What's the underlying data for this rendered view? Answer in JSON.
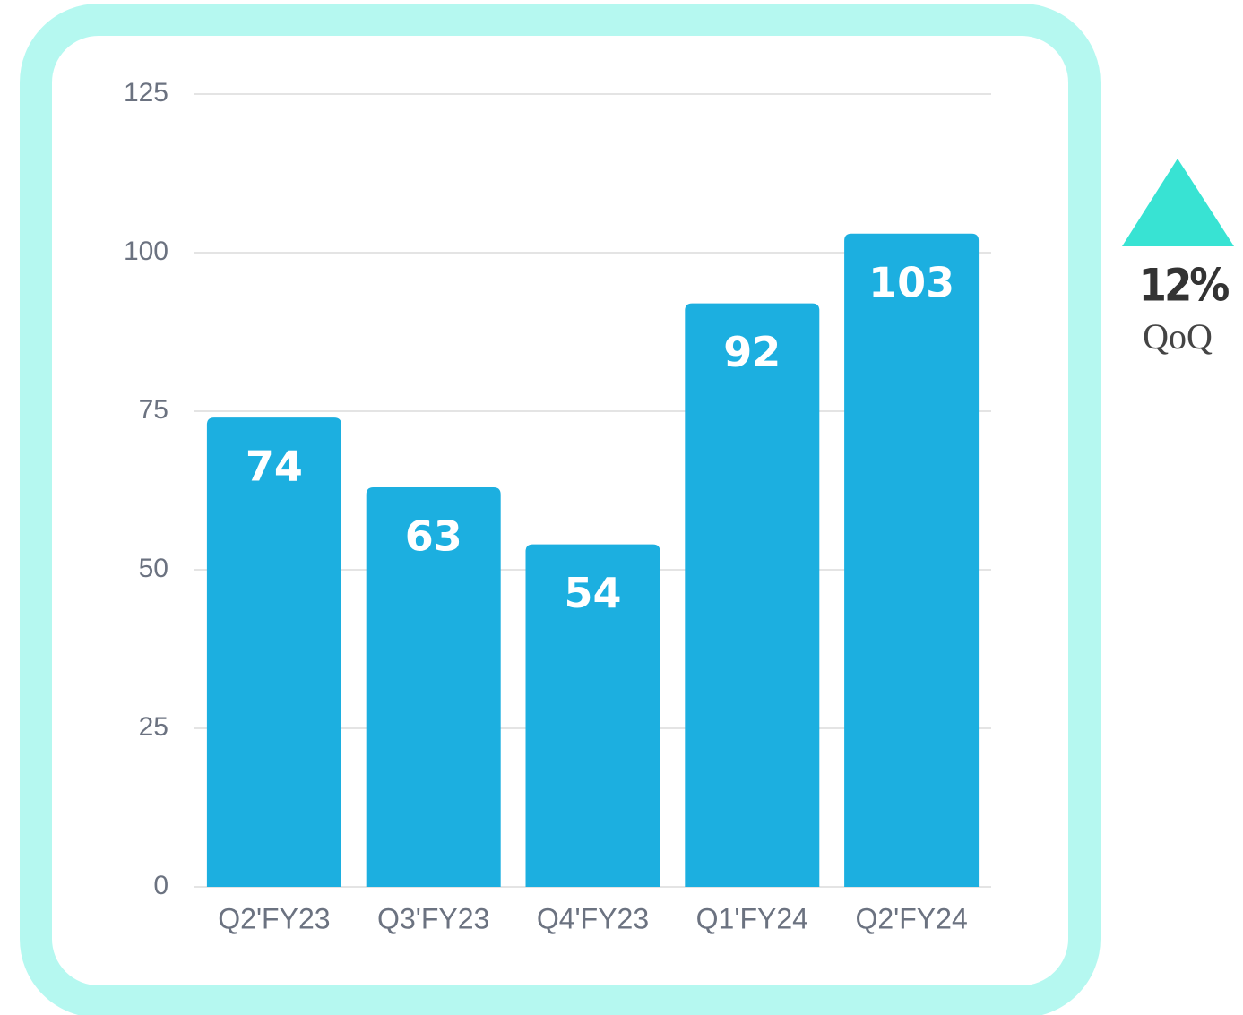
{
  "chart_data": {
    "type": "bar",
    "categories": [
      "Q2'FY23",
      "Q3'FY23",
      "Q4'FY23",
      "Q1'FY24",
      "Q2'FY24"
    ],
    "values": [
      74,
      63,
      54,
      92,
      103
    ],
    "color": "#1cafe0",
    "ylim": [
      0,
      125
    ],
    "yticks": [
      0,
      25,
      50,
      75,
      100,
      125
    ],
    "grid": true,
    "annotations": [
      "12%",
      "QoQ"
    ],
    "annotation_color": "#38e3d3"
  }
}
